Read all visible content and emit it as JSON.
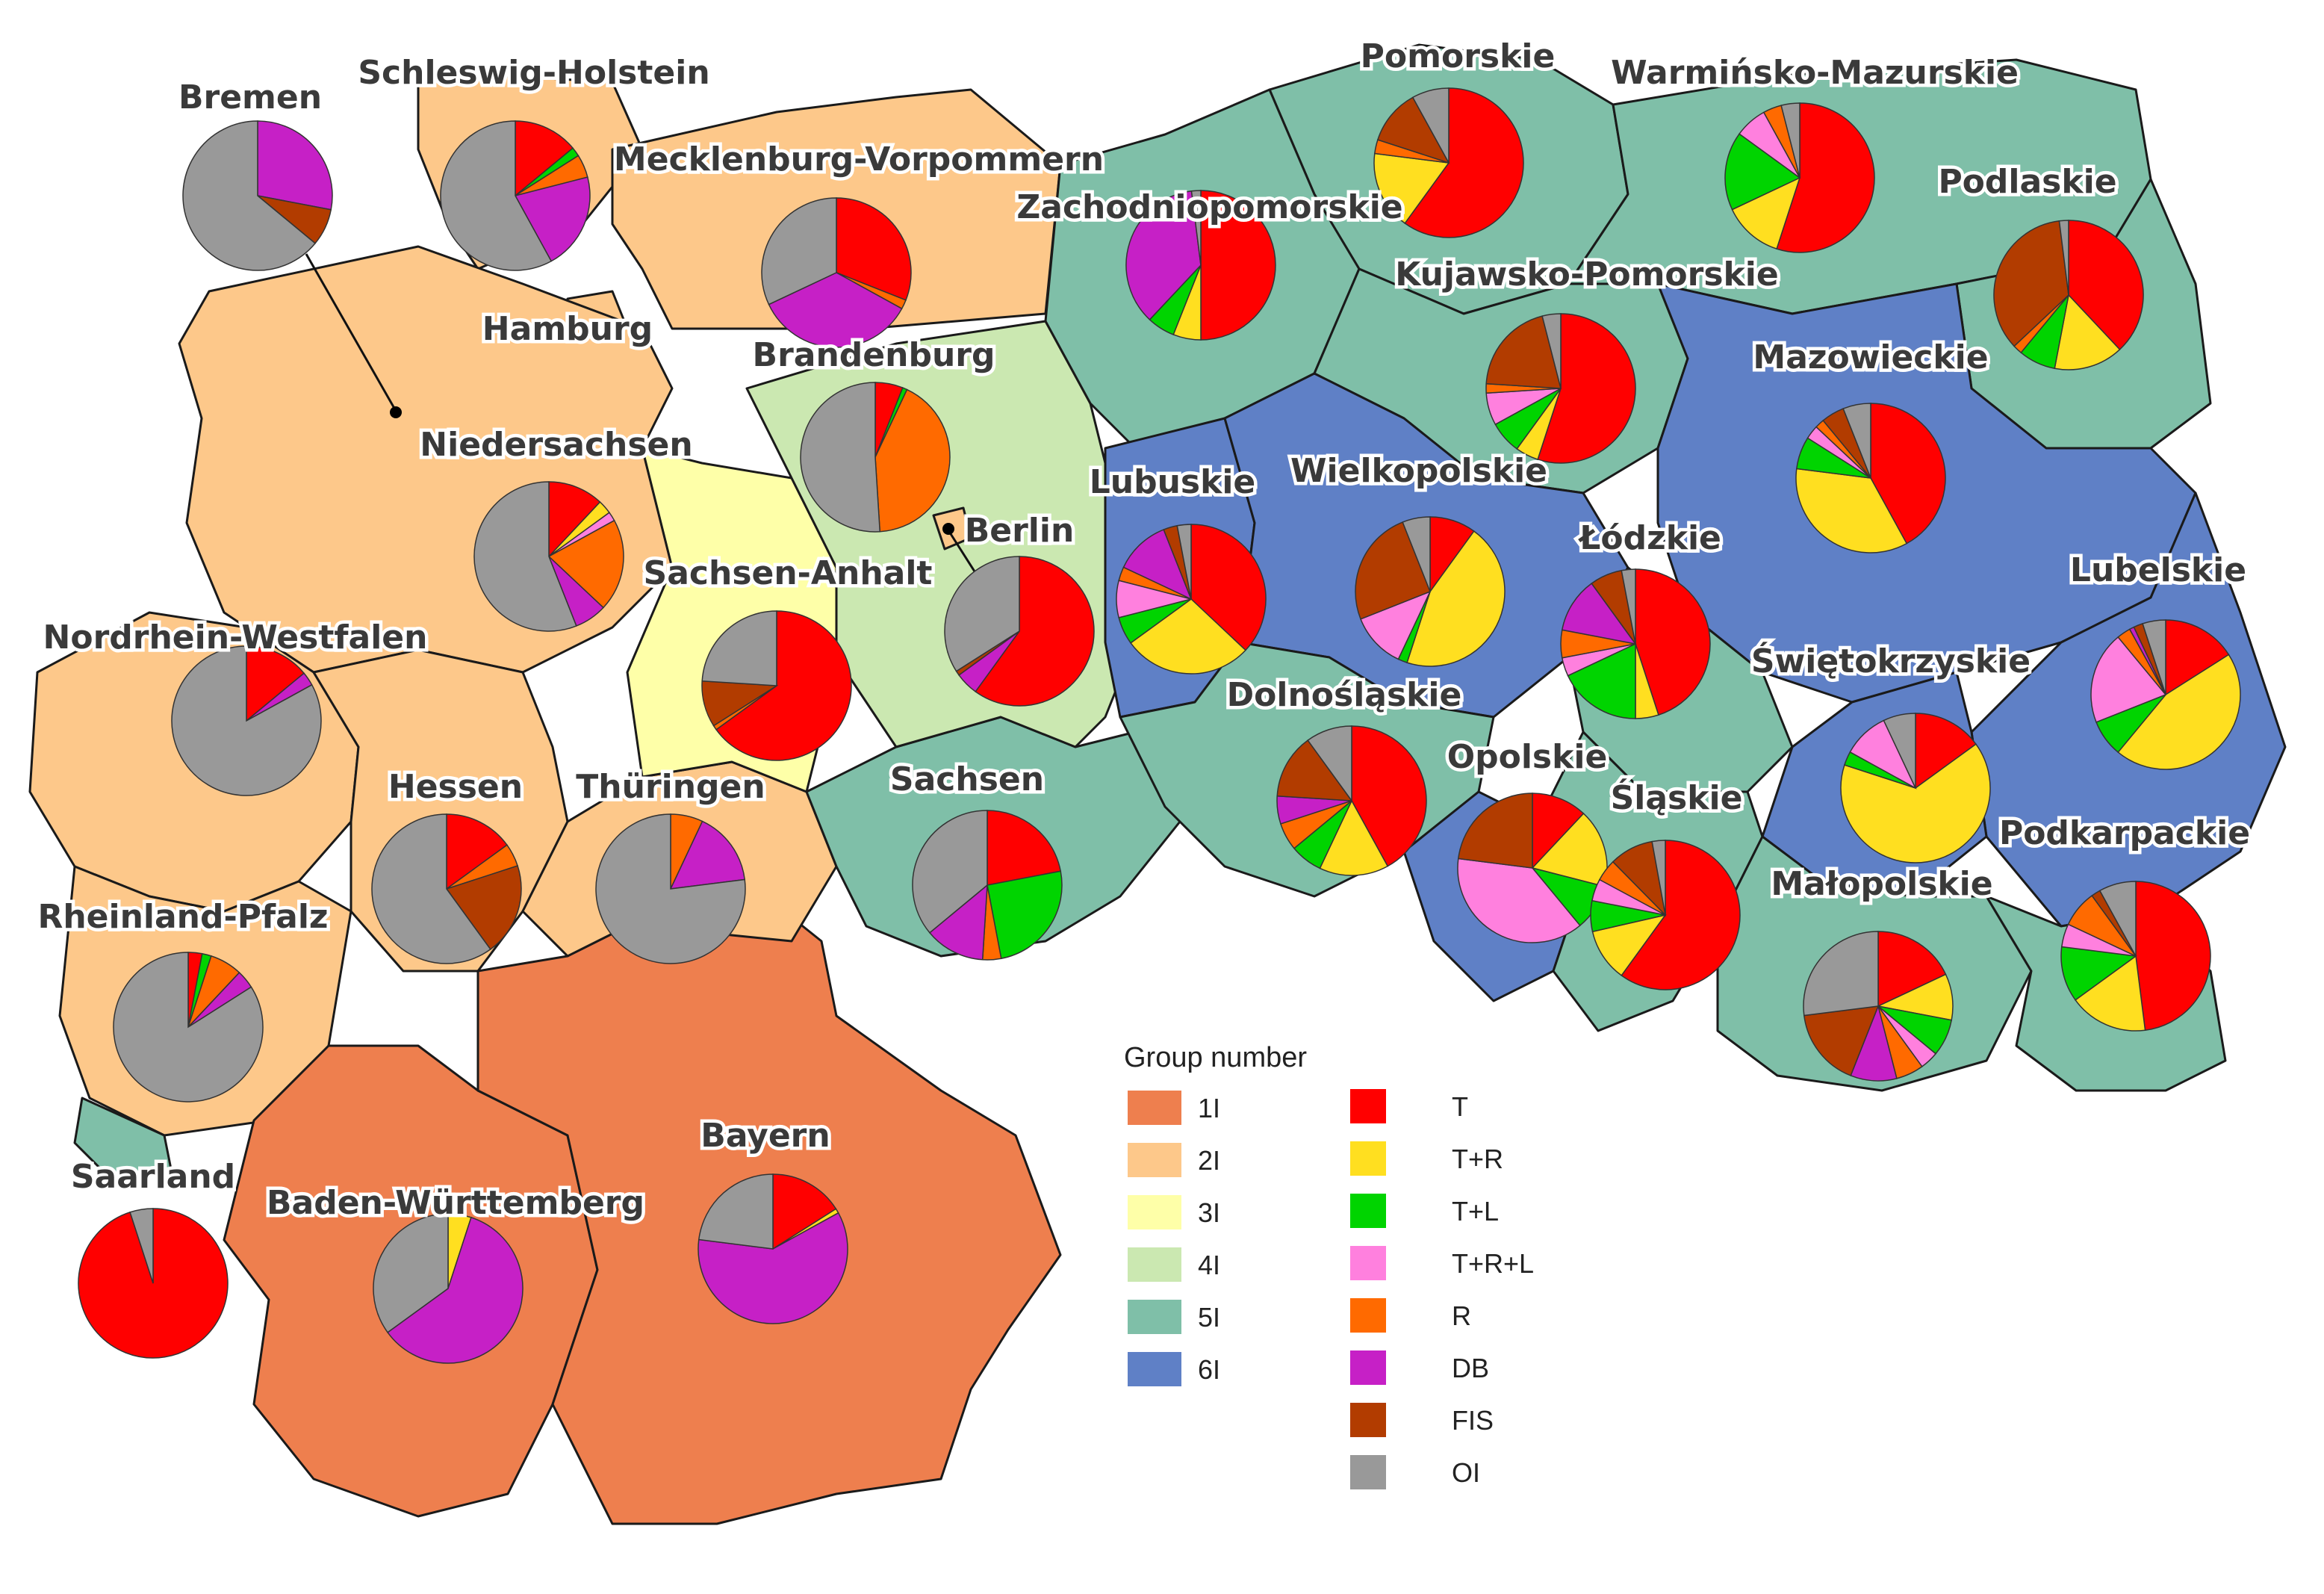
{
  "colors": {
    "groups": {
      "1I": "#ee7f4e",
      "2I": "#fdc88a",
      "3I": "#feffa8",
      "4I": "#cbe8b1",
      "5I": "#7fbfa8",
      "6I": "#5f80c6"
    },
    "categories": {
      "T": "#ff0000",
      "T+R": "#ffdf20",
      "T+L": "#00d400",
      "T+R+L": "#ff80de",
      "R": "#ff6a00",
      "DB": "#c620c6",
      "FIS": "#b23c00",
      "OI": "#999999"
    }
  },
  "legend": {
    "title": "Group number",
    "groups": [
      "1I",
      "2I",
      "3I",
      "4I",
      "5I",
      "6I"
    ],
    "categories": [
      "T",
      "T+R",
      "T+L",
      "T+R+L",
      "R",
      "DB",
      "FIS",
      "OI"
    ]
  },
  "regions": [
    {
      "name": "Bremen",
      "group": "2I",
      "shares": {
        "T": 0,
        "T+R": 0,
        "T+L": 0,
        "T+R+L": 0,
        "R": 0,
        "DB": 0.28,
        "FIS": 0.08,
        "OI": 0.64
      }
    },
    {
      "name": "Schleswig-Holstein",
      "group": "2I",
      "shares": {
        "T": 0.14,
        "T+R": 0,
        "T+L": 0.02,
        "T+R+L": 0,
        "R": 0.05,
        "DB": 0.21,
        "FIS": 0,
        "OI": 0.58
      }
    },
    {
      "name": "Mecklenburg-Vorpommern",
      "group": "2I",
      "shares": {
        "T": 0.31,
        "T+R": 0,
        "T+L": 0,
        "T+R+L": 0,
        "R": 0.02,
        "DB": 0.35,
        "FIS": 0,
        "OI": 0.32
      }
    },
    {
      "name": "Hamburg",
      "group": "2I",
      "shares": {
        "T": 0,
        "T+R": 0,
        "T+L": 0,
        "T+R+L": 0,
        "R": 0,
        "DB": 0,
        "FIS": 0,
        "OI": 0
      }
    },
    {
      "name": "Niedersachsen",
      "group": "2I",
      "shares": {
        "T": 0.12,
        "T+R": 0.03,
        "T+L": 0,
        "T+R+L": 0.02,
        "R": 0.2,
        "DB": 0.07,
        "FIS": 0,
        "OI": 0.56
      }
    },
    {
      "name": "Nordrhein-Westfalen",
      "group": "2I",
      "shares": {
        "T": 0.14,
        "T+R": 0,
        "T+L": 0,
        "T+R+L": 0,
        "R": 0,
        "DB": 0.03,
        "FIS": 0,
        "OI": 0.83
      }
    },
    {
      "name": "Hessen",
      "group": "2I",
      "shares": {
        "T": 0.15,
        "T+R": 0,
        "T+L": 0,
        "T+R+L": 0,
        "R": 0.05,
        "DB": 0,
        "FIS": 0.2,
        "OI": 0.6
      }
    },
    {
      "name": "Rheinland-Pfalz",
      "group": "2I",
      "shares": {
        "T": 0.03,
        "T+R": 0,
        "T+L": 0.02,
        "T+R+L": 0,
        "R": 0.07,
        "DB": 0.04,
        "FIS": 0,
        "OI": 0.84
      }
    },
    {
      "name": "Saarland",
      "group": "5I",
      "shares": {
        "T": 0.95,
        "T+R": 0,
        "T+L": 0,
        "T+R+L": 0,
        "R": 0,
        "DB": 0,
        "FIS": 0,
        "OI": 0.05
      }
    },
    {
      "name": "Baden-Württemberg",
      "group": "1I",
      "shares": {
        "T": 0,
        "T+R": 0.05,
        "T+L": 0,
        "T+R+L": 0,
        "R": 0,
        "DB": 0.6,
        "FIS": 0,
        "OI": 0.35
      }
    },
    {
      "name": "Bayern",
      "group": "1I",
      "shares": {
        "T": 0.16,
        "T+R": 0.01,
        "T+L": 0,
        "T+R+L": 0,
        "R": 0,
        "DB": 0.6,
        "FIS": 0,
        "OI": 0.23
      }
    },
    {
      "name": "Thüringen",
      "group": "2I",
      "shares": {
        "T": 0,
        "T+R": 0,
        "T+L": 0,
        "T+R+L": 0,
        "R": 0.07,
        "DB": 0.16,
        "FIS": 0,
        "OI": 0.77
      }
    },
    {
      "name": "Sachsen",
      "group": "5I",
      "shares": {
        "T": 0.22,
        "T+R": 0,
        "T+L": 0.25,
        "T+R+L": 0,
        "R": 0.04,
        "DB": 0.13,
        "FIS": 0,
        "OI": 0.36
      }
    },
    {
      "name": "Sachsen-Anhalt",
      "group": "3I",
      "shares": {
        "T": 0.65,
        "T+R": 0,
        "T+L": 0,
        "T+R+L": 0,
        "R": 0.01,
        "DB": 0,
        "FIS": 0.1,
        "OI": 0.24
      }
    },
    {
      "name": "Brandenburg",
      "group": "4I",
      "shares": {
        "T": 0.06,
        "T+R": 0,
        "T+L": 0.01,
        "T+R+L": 0,
        "R": 0.42,
        "DB": 0,
        "FIS": 0,
        "OI": 0.51
      }
    },
    {
      "name": "Berlin",
      "group": "2I",
      "shares": {
        "T": 0.6,
        "T+R": 0,
        "T+L": 0,
        "T+R+L": 0,
        "R": 0,
        "DB": 0.05,
        "FIS": 0.01,
        "OI": 0.34
      }
    },
    {
      "name": "Pomorskie",
      "group": "5I",
      "shares": {
        "T": 0.6,
        "T+R": 0.17,
        "T+L": 0,
        "T+R+L": 0,
        "R": 0.03,
        "DB": 0,
        "FIS": 0.12,
        "OI": 0.08
      }
    },
    {
      "name": "Warmińsko-Mazurskie",
      "group": "5I",
      "shares": {
        "T": 0.55,
        "T+R": 0.13,
        "T+L": 0.17,
        "T+R+L": 0.07,
        "R": 0.04,
        "DB": 0,
        "FIS": 0,
        "OI": 0.04
      }
    },
    {
      "name": "Zachodniopomorskie",
      "group": "5I",
      "shares": {
        "T": 0.5,
        "T+R": 0.06,
        "T+L": 0.06,
        "T+R+L": 0,
        "R": 0,
        "DB": 0.36,
        "FIS": 0,
        "OI": 0.02
      }
    },
    {
      "name": "Kujawsko-Pomorskie",
      "group": "5I",
      "shares": {
        "T": 0.55,
        "T+R": 0.05,
        "T+L": 0.07,
        "T+R+L": 0.07,
        "R": 0.02,
        "DB": 0,
        "FIS": 0.2,
        "OI": 0.04
      }
    },
    {
      "name": "Podlaskie",
      "group": "5I",
      "shares": {
        "T": 0.38,
        "T+R": 0.15,
        "T+L": 0.08,
        "T+R+L": 0,
        "R": 0.02,
        "DB": 0,
        "FIS": 0.35,
        "OI": 0.02
      }
    },
    {
      "name": "Mazowieckie",
      "group": "6I",
      "shares": {
        "T": 0.42,
        "T+R": 0.35,
        "T+L": 0.07,
        "T+R+L": 0.03,
        "R": 0.02,
        "DB": 0,
        "FIS": 0.05,
        "OI": 0.06
      }
    },
    {
      "name": "Lubuskie",
      "group": "6I",
      "shares": {
        "T": 0.37,
        "T+R": 0.28,
        "T+L": 0.06,
        "T+R+L": 0.08,
        "R": 0.03,
        "DB": 0.12,
        "FIS": 0.03,
        "OI": 0.03
      }
    },
    {
      "name": "Wielkopolskie",
      "group": "6I",
      "shares": {
        "T": 0.1,
        "T+R": 0.45,
        "T+L": 0.02,
        "T+R+L": 0.12,
        "R": 0,
        "DB": 0,
        "FIS": 0.25,
        "OI": 0.06
      }
    },
    {
      "name": "Łódzkie",
      "group": "5I",
      "shares": {
        "T": 0.45,
        "T+R": 0.05,
        "T+L": 0.18,
        "T+R+L": 0.04,
        "R": 0.06,
        "DB": 0.12,
        "FIS": 0.07,
        "OI": 0.03
      }
    },
    {
      "name": "Lubelskie",
      "group": "6I",
      "shares": {
        "T": 0.16,
        "T+R": 0.45,
        "T+L": 0.08,
        "T+R+L": 0.2,
        "R": 0.03,
        "DB": 0.01,
        "FIS": 0.02,
        "OI": 0.05
      }
    },
    {
      "name": "Świętokrzyskie",
      "group": "6I",
      "shares": {
        "T": 0.15,
        "T+R": 0.65,
        "T+L": 0.03,
        "T+R+L": 0.1,
        "R": 0,
        "DB": 0,
        "FIS": 0,
        "OI": 0.07
      }
    },
    {
      "name": "Dolnośląskie",
      "group": "5I",
      "shares": {
        "T": 0.42,
        "T+R": 0.15,
        "T+L": 0.07,
        "T+R+L": 0,
        "R": 0.06,
        "DB": 0.06,
        "FIS": 0.14,
        "OI": 0.1
      }
    },
    {
      "name": "Opolskie",
      "group": "6I",
      "shares": {
        "T": 0.12,
        "T+R": 0.17,
        "T+L": 0.1,
        "T+R+L": 0.38,
        "R": 0,
        "DB": 0,
        "FIS": 0.23,
        "OI": 0
      }
    },
    {
      "name": "Śląskie",
      "group": "5I",
      "shares": {
        "T": 0.63,
        "T+R": 0.12,
        "T+L": 0.07,
        "T+R+L": 0.05,
        "R": 0.05,
        "DB": 0,
        "FIS": 0.1,
        "OI": 0.03
      }
    },
    {
      "name": "Małopolskie",
      "group": "5I",
      "shares": {
        "T": 0.18,
        "T+R": 0.1,
        "T+L": 0.08,
        "T+R+L": 0.04,
        "R": 0.06,
        "DB": 0.1,
        "FIS": 0.17,
        "OI": 0.27
      }
    },
    {
      "name": "Podkarpackie",
      "group": "5I",
      "shares": {
        "T": 0.48,
        "T+R": 0.17,
        "T+L": 0.12,
        "T+R+L": 0.05,
        "R": 0.08,
        "DB": 0,
        "FIS": 0.02,
        "OI": 0.08
      }
    }
  ]
}
